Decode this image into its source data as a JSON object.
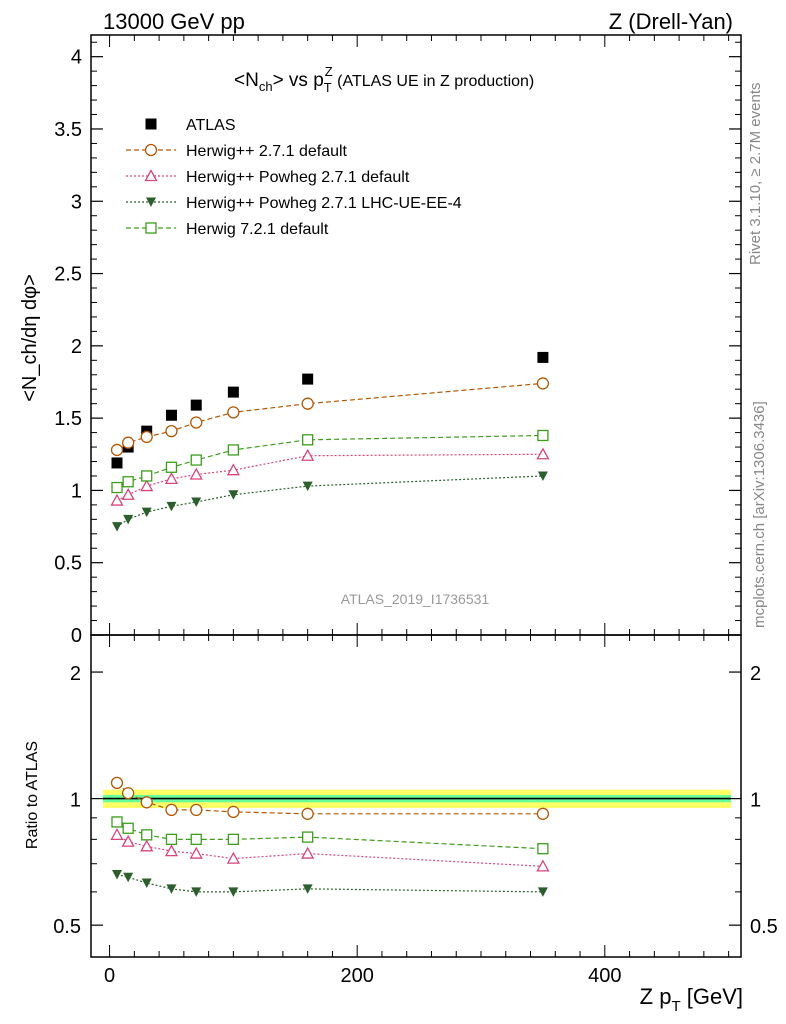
{
  "header": {
    "left": "13000 GeV pp",
    "right": "Z (Drell-Yan)"
  },
  "side_labels": {
    "rivet": "Rivet 3.1.10, ≥ 2.7M events",
    "mcplots": "mcplots.cern.ch [arXiv:1306.3436]"
  },
  "colors": {
    "atlas": "#000000",
    "herwig271": "#b35806",
    "powheg": "#d6457f",
    "powheg_ue": "#2d5e2d",
    "herwig721": "#3c9e1c",
    "band_outer": "#ffff66",
    "band_inner": "#66ff99"
  },
  "chart_data": [
    {
      "type": "scatter",
      "panel": "main",
      "title_parts": {
        "a": "<N",
        "a_sub": "ch",
        "b": "> vs p",
        "b_sub": "T",
        "b_sup": "Z",
        "c": " (ATLAS UE in Z production)"
      },
      "ylabel": "<N_ch/dη dφ>",
      "analysis_label": "ATLAS_2019_I1736531",
      "xlim": [
        -15,
        510
      ],
      "ylim": [
        0,
        4.15
      ],
      "yticks": [
        0,
        0.5,
        1,
        1.5,
        2,
        2.5,
        3,
        3.5,
        4
      ],
      "ytick_labels": [
        "0",
        "0.5",
        "1",
        "1.5",
        "2",
        "2.5",
        "3",
        "3.5",
        "4"
      ],
      "legend_placement": "top-left",
      "x": [
        6,
        15,
        30,
        50,
        70,
        100,
        160,
        350
      ],
      "series": [
        {
          "name": "ATLAS",
          "marker": "filled-square",
          "color_key": "atlas",
          "line": "none",
          "values": [
            1.19,
            1.3,
            1.41,
            1.52,
            1.59,
            1.68,
            1.77,
            1.92
          ]
        },
        {
          "name": "Herwig++ 2.7.1 default",
          "marker": "open-circle",
          "color_key": "herwig271",
          "line": "dashed",
          "values": [
            1.28,
            1.33,
            1.37,
            1.41,
            1.47,
            1.54,
            1.6,
            1.74
          ]
        },
        {
          "name": "Herwig++ Powheg 2.7.1 default",
          "marker": "open-triangle",
          "color_key": "powheg",
          "line": "dotted",
          "values": [
            0.93,
            0.97,
            1.03,
            1.08,
            1.11,
            1.14,
            1.24,
            1.25
          ]
        },
        {
          "name": "Herwig++ Powheg 2.7.1 LHC-UE-EE-4",
          "marker": "filled-triangle-down",
          "color_key": "powheg_ue",
          "line": "dotted",
          "values": [
            0.75,
            0.8,
            0.85,
            0.89,
            0.92,
            0.97,
            1.03,
            1.1
          ]
        },
        {
          "name": "Herwig 7.2.1 default",
          "marker": "open-square",
          "color_key": "herwig721",
          "line": "dashed",
          "values": [
            1.02,
            1.06,
            1.1,
            1.16,
            1.21,
            1.28,
            1.35,
            1.38
          ]
        }
      ]
    },
    {
      "type": "scatter",
      "panel": "ratio",
      "ylabel": "Ratio to ATLAS",
      "xlabel": "Z p_T [GeV]",
      "xlabel_parts": {
        "a": "Z p",
        "a_sub": "T",
        "b": " [GeV]"
      },
      "xlim": [
        -15,
        510
      ],
      "ylim": [
        0.42,
        2.45
      ],
      "log_y": true,
      "xticks": [
        0,
        200,
        400
      ],
      "xtick_labels": [
        "0",
        "200",
        "400"
      ],
      "yticks": [
        0.5,
        1,
        2
      ],
      "ytick_labels": [
        "0.5",
        "1",
        "2"
      ],
      "reference_band": {
        "center": 1.0,
        "inner": 0.02,
        "outer": 0.05
      },
      "x": [
        6,
        15,
        30,
        50,
        70,
        100,
        160,
        350
      ],
      "series": [
        {
          "name": "Herwig++ 2.7.1 default",
          "marker": "open-circle",
          "color_key": "herwig271",
          "line": "dashed",
          "values": [
            1.09,
            1.03,
            0.98,
            0.94,
            0.94,
            0.93,
            0.92,
            0.92
          ]
        },
        {
          "name": "Herwig++ Powheg 2.7.1 default",
          "marker": "open-triangle",
          "color_key": "powheg",
          "line": "dotted",
          "values": [
            0.82,
            0.79,
            0.77,
            0.75,
            0.74,
            0.72,
            0.74,
            0.69
          ]
        },
        {
          "name": "Herwig++ Powheg 2.7.1 LHC-UE-EE-4",
          "marker": "filled-triangle-down",
          "color_key": "powheg_ue",
          "line": "dotted",
          "values": [
            0.66,
            0.65,
            0.63,
            0.61,
            0.6,
            0.6,
            0.61,
            0.6
          ]
        },
        {
          "name": "Herwig 7.2.1 default",
          "marker": "open-square",
          "color_key": "herwig721",
          "line": "dashed",
          "values": [
            0.88,
            0.85,
            0.82,
            0.8,
            0.8,
            0.8,
            0.81,
            0.76
          ]
        }
      ]
    }
  ]
}
